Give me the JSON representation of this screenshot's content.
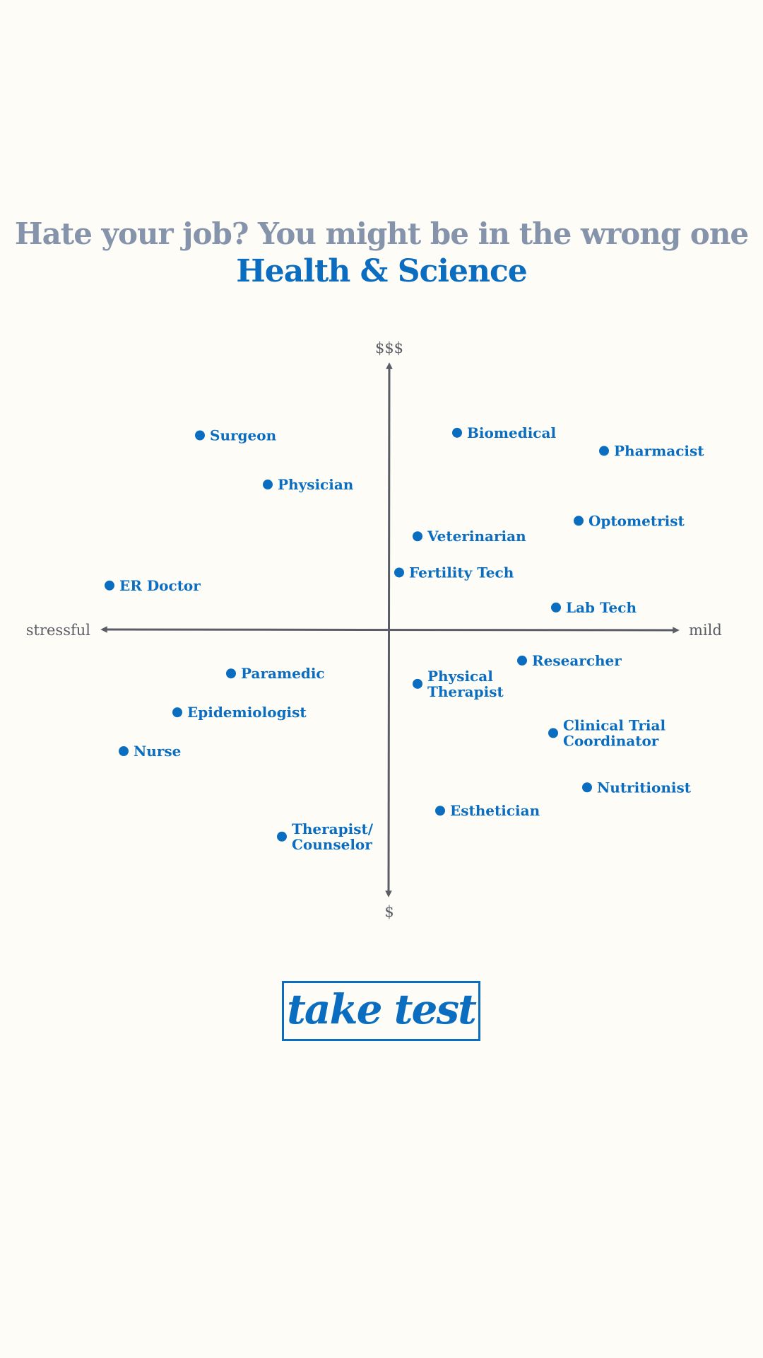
{
  "header": {
    "headline": "Hate your job? You might be in the wrong one",
    "subtitle": "Health & Science"
  },
  "cta": {
    "label": "take test"
  },
  "colors": {
    "background": "#fdfcf7",
    "accent": "#0b6dc0",
    "headline": "#8593ab",
    "axis": "#5a5d66"
  },
  "chart_data": {
    "type": "scatter",
    "x_axis": {
      "negative_label": "stressful",
      "positive_label": "mild",
      "range": [
        -10,
        10
      ]
    },
    "y_axis": {
      "negative_label": "$",
      "positive_label": "$$$",
      "range": [
        -10,
        10
      ]
    },
    "grid": false,
    "legend": "none",
    "points": [
      {
        "label": [
          "Surgeon"
        ],
        "x": -6.7,
        "y": 7.5
      },
      {
        "label": [
          "Physician"
        ],
        "x": -4.3,
        "y": 5.6
      },
      {
        "label": [
          "ER Doctor"
        ],
        "x": -9.9,
        "y": 1.7
      },
      {
        "label": [
          "Biomedical"
        ],
        "x": 2.4,
        "y": 7.6
      },
      {
        "label": [
          "Pharmacist"
        ],
        "x": 7.6,
        "y": 6.9
      },
      {
        "label": [
          "Optometrist"
        ],
        "x": 6.7,
        "y": 4.2
      },
      {
        "label": [
          "Veterinarian"
        ],
        "x": 1.0,
        "y": 3.6
      },
      {
        "label": [
          "Fertility Tech"
        ],
        "x": 0.35,
        "y": 2.2
      },
      {
        "label": [
          "Lab Tech"
        ],
        "x": 5.9,
        "y": 0.85
      },
      {
        "label": [
          "Paramedic"
        ],
        "x": -5.6,
        "y": -1.7
      },
      {
        "label": [
          "Epidemiologist"
        ],
        "x": -7.5,
        "y": -3.2
      },
      {
        "label": [
          "Nurse"
        ],
        "x": -9.4,
        "y": -4.7
      },
      {
        "label": [
          "Therapist/",
          "Counselor"
        ],
        "x": -3.8,
        "y": -8.0
      },
      {
        "label": [
          "Researcher"
        ],
        "x": 4.7,
        "y": -1.2
      },
      {
        "label": [
          "Physical",
          "Therapist"
        ],
        "x": 1.0,
        "y": -2.1
      },
      {
        "label": [
          "Clinical Trial",
          "Coordinator"
        ],
        "x": 5.8,
        "y": -4.0
      },
      {
        "label": [
          "Nutritionist"
        ],
        "x": 7.0,
        "y": -6.1
      },
      {
        "label": [
          "Esthetician"
        ],
        "x": 1.8,
        "y": -7.0
      }
    ]
  }
}
